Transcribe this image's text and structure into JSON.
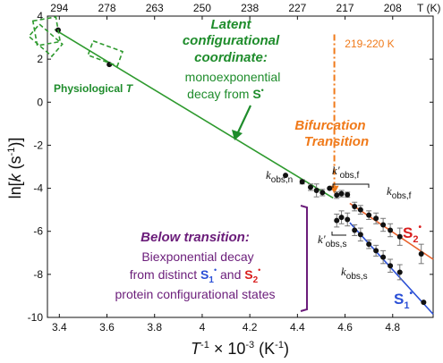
{
  "chart_data": {
    "type": "scatter",
    "xlim": [
      3.35,
      4.97
    ],
    "ylim": [
      -10,
      4
    ],
    "x_ticks": [
      "3.4",
      "3.6",
      "3.8",
      "4",
      "4.2",
      "4.4",
      "4.6",
      "4.8"
    ],
    "x_tick_values": [
      3.4,
      3.6,
      3.8,
      4.0,
      4.2,
      4.4,
      4.6,
      4.8
    ],
    "y_ticks": [
      "4",
      "2",
      "0",
      "-2",
      "-4",
      "-6",
      "-8",
      "-10"
    ],
    "y_tick_values": [
      4,
      2,
      0,
      -2,
      -4,
      -6,
      -8,
      -10
    ],
    "top_ticks": [
      "294",
      "278",
      "263",
      "250",
      "238",
      "227",
      "217",
      "208"
    ],
    "top_tick_values": [
      3.4,
      3.6,
      3.8,
      4.0,
      4.2,
      4.4,
      4.6,
      4.8
    ],
    "top_axis_unit": "T (K)",
    "xlabel_main": "T",
    "xlabel_sup": "-1",
    "xlabel_tail": " × 10",
    "xlabel_sup2": "-3",
    "xlabel_unit": " (K",
    "xlabel_unit_sup": "-1",
    "xlabel_end": ")",
    "ylabel_main": "ln[",
    "ylabel_k": "k",
    "ylabel_unit": "  (s",
    "ylabel_unit_sup": "-1",
    "ylabel_end": ")]",
    "series": [
      {
        "name": "k_obs,n",
        "color": "#2e9a2e",
        "fit": [
          [
            3.38,
            3.38
          ],
          [
            4.55,
            -4.45
          ]
        ],
        "points": [
          {
            "x": 3.395,
            "y": 3.35,
            "err": 0.0
          },
          {
            "x": 3.61,
            "y": 1.75,
            "err": 0.0
          },
          {
            "x": 4.35,
            "y": -3.4,
            "err": 0.0
          },
          {
            "x": 4.42,
            "y": -3.7,
            "err": 0.1
          },
          {
            "x": 4.455,
            "y": -3.95,
            "err": 0.15
          },
          {
            "x": 4.48,
            "y": -4.1,
            "err": 0.3
          },
          {
            "x": 4.505,
            "y": -4.2,
            "err": 0.15
          },
          {
            "x": 4.535,
            "y": -4.0,
            "err": 0.0
          }
        ]
      },
      {
        "name": "k'_obs,f",
        "color": "#111111",
        "points": [
          {
            "x": 4.565,
            "y": -4.32,
            "err": 0.15
          },
          {
            "x": 4.585,
            "y": -4.25,
            "err": 0.15
          },
          {
            "x": 4.61,
            "y": -4.3,
            "err": 0.12
          }
        ]
      },
      {
        "name": "k'_obs,s",
        "color": "#111111",
        "points": [
          {
            "x": 4.565,
            "y": -5.5,
            "err": 0.3
          },
          {
            "x": 4.585,
            "y": -5.35,
            "err": 0.3
          },
          {
            "x": 4.61,
            "y": -5.45,
            "err": 0.3
          }
        ]
      },
      {
        "name": "k_obs,f",
        "color": "#e8622c",
        "fit": [
          [
            4.62,
            -4.7
          ],
          [
            4.97,
            -7.3
          ]
        ],
        "points": [
          {
            "x": 4.64,
            "y": -4.85,
            "err": 0.2
          },
          {
            "x": 4.665,
            "y": -5.0,
            "err": 0.2
          },
          {
            "x": 4.7,
            "y": -5.25,
            "err": 0.2
          },
          {
            "x": 4.73,
            "y": -5.4,
            "err": 0.25
          },
          {
            "x": 4.76,
            "y": -5.7,
            "err": 0.3
          },
          {
            "x": 4.79,
            "y": -5.95,
            "err": 0.3
          },
          {
            "x": 4.83,
            "y": -6.25,
            "err": 0.4
          },
          {
            "x": 4.92,
            "y": -7.05,
            "err": 0.45
          }
        ]
      },
      {
        "name": "k_obs,s",
        "color": "#2a4fd6",
        "fit": [
          [
            4.62,
            -5.6
          ],
          [
            4.97,
            -9.85
          ]
        ],
        "points": [
          {
            "x": 4.64,
            "y": -5.95,
            "err": 0.25
          },
          {
            "x": 4.665,
            "y": -6.15,
            "err": 0.3
          },
          {
            "x": 4.7,
            "y": -6.6,
            "err": 0.2
          },
          {
            "x": 4.73,
            "y": -6.9,
            "err": 0.25
          },
          {
            "x": 4.76,
            "y": -7.2,
            "err": 0.3
          },
          {
            "x": 4.79,
            "y": -7.6,
            "err": 0.3
          },
          {
            "x": 4.83,
            "y": -7.9,
            "err": 0.35
          },
          {
            "x": 4.93,
            "y": -9.3,
            "err": 0.0
          }
        ]
      }
    ],
    "transition_x": 4.555,
    "transition_ymin": -4.3,
    "transition_ymax": 3.15
  },
  "annotations": {
    "latent_title_1": "Latent",
    "latent_title_2": "configurational",
    "latent_title_3": "coordinate:",
    "latent_text_1": "monoexponential",
    "latent_text_2": "decay from ",
    "latent_text_2_bold": "S",
    "latent_text_2_dot": "•",
    "physio_label": "Physiological ",
    "physio_label_italic": "T",
    "transition_temp": "219-220 K",
    "bifurcation_1": "Bifurcation",
    "bifurcation_2": "Transition",
    "below_title": "Below transition:",
    "below_text_1": "Biexponential decay",
    "below_text_2a": "from distinct ",
    "below_text_2_s1": "S",
    "below_text_2_s1_sub": "1",
    "below_text_2_and": " and ",
    "below_text_2_s2": "S",
    "below_text_2_s2_sub": "2",
    "below_text_3": "protein configurational states",
    "dot": "•",
    "s2_label": "S",
    "s2_sub": "2",
    "s1_label": "S",
    "s1_sub": "1",
    "k_label": "k",
    "kobs_n_sub": "obs,n",
    "kpobs_f_prime": "'",
    "kpobs_f_sub": "obs,f",
    "kpobs_s_sub": "obs,s",
    "kobs_f_sub": "obs,f",
    "kobs_s_sub": "obs,s"
  },
  "colors": {
    "green": "#1e8c2b",
    "orange": "#f07a1a",
    "purple": "#6b1d7a",
    "blue": "#2a4fd6",
    "red": "#d91e1e"
  }
}
